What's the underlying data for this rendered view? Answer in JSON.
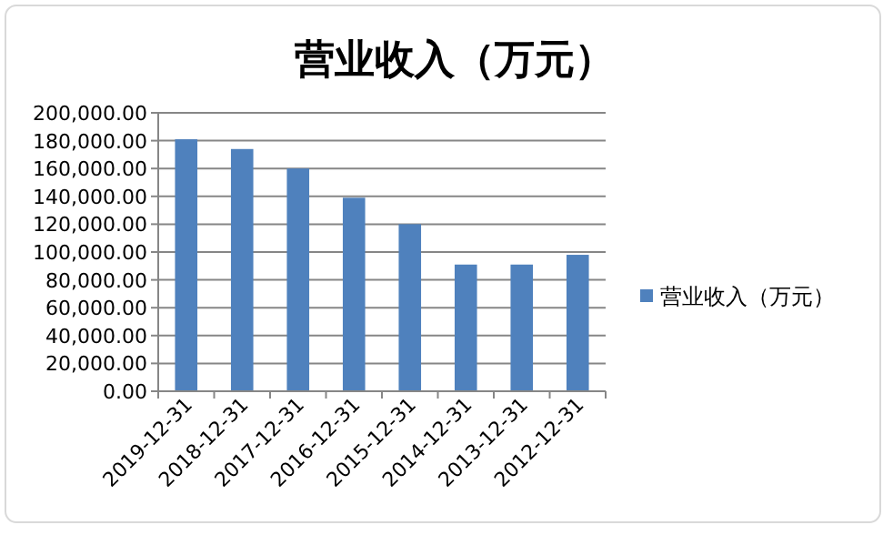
{
  "chart_data": {
    "type": "bar",
    "title": "营业收入（万元）",
    "categories": [
      "2019-12-31",
      "2018-12-31",
      "2017-12-31",
      "2016-12-31",
      "2015-12-31",
      "2014-12-31",
      "2013-12-31",
      "2012-12-31"
    ],
    "series": [
      {
        "name": "营业收入（万元）",
        "color": "#4f81bd",
        "values": [
          181000,
          174000,
          160000,
          139000,
          120000,
          91000,
          91000,
          98000
        ]
      }
    ],
    "ylim": [
      0,
      200000
    ],
    "yticks": [
      {
        "value": 0,
        "label": "0.00"
      },
      {
        "value": 20000,
        "label": "20,000.00"
      },
      {
        "value": 40000,
        "label": "40,000.00"
      },
      {
        "value": 60000,
        "label": "60,000.00"
      },
      {
        "value": 80000,
        "label": "80,000.00"
      },
      {
        "value": 100000,
        "label": "100,000.00"
      },
      {
        "value": 120000,
        "label": "120,000.00"
      },
      {
        "value": 140000,
        "label": "140,000.00"
      },
      {
        "value": 160000,
        "label": "160,000.00"
      },
      {
        "value": 180000,
        "label": "180,000.00"
      },
      {
        "value": 200000,
        "label": "200,000.00"
      }
    ],
    "grid": "y",
    "legend": "right"
  }
}
